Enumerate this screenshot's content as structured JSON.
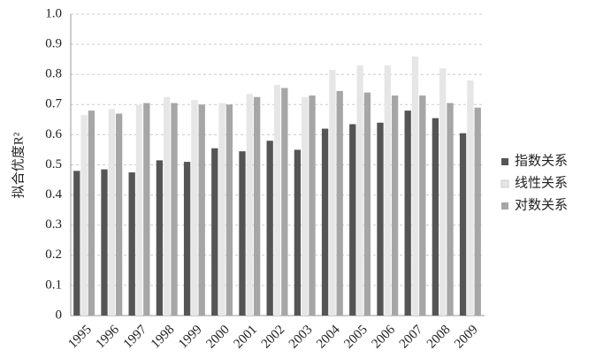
{
  "chart_data": {
    "type": "bar",
    "ylabel": "拟合优度R²",
    "categories": [
      "1995",
      "1996",
      "1997",
      "1998",
      "1999",
      "2000",
      "2001",
      "2002",
      "2003",
      "2004",
      "2005",
      "2006",
      "2007",
      "2008",
      "2009"
    ],
    "series": [
      {
        "name": "指数关系",
        "color": "#555555",
        "values": [
          0.48,
          0.485,
          0.475,
          0.515,
          0.51,
          0.555,
          0.545,
          0.58,
          0.55,
          0.62,
          0.635,
          0.64,
          0.68,
          0.655,
          0.605
        ]
      },
      {
        "name": "线性关系",
        "color": "#e6e6e6",
        "values": [
          0.665,
          0.685,
          0.7,
          0.725,
          0.715,
          0.705,
          0.735,
          0.765,
          0.725,
          0.815,
          0.83,
          0.83,
          0.86,
          0.82,
          0.78
        ]
      },
      {
        "name": "对数关系",
        "color": "#a6a6a6",
        "values": [
          0.68,
          0.67,
          0.705,
          0.705,
          0.7,
          0.7,
          0.725,
          0.755,
          0.73,
          0.745,
          0.74,
          0.73,
          0.73,
          0.705,
          0.69
        ]
      }
    ],
    "ylim": [
      0,
      1
    ],
    "yticks": [
      0,
      0.1,
      0.2,
      0.3,
      0.4,
      0.5,
      0.6,
      0.7,
      0.8,
      0.9,
      {
        "value": 1,
        "label": "1.0"
      }
    ],
    "grid": true,
    "legend": "right"
  }
}
